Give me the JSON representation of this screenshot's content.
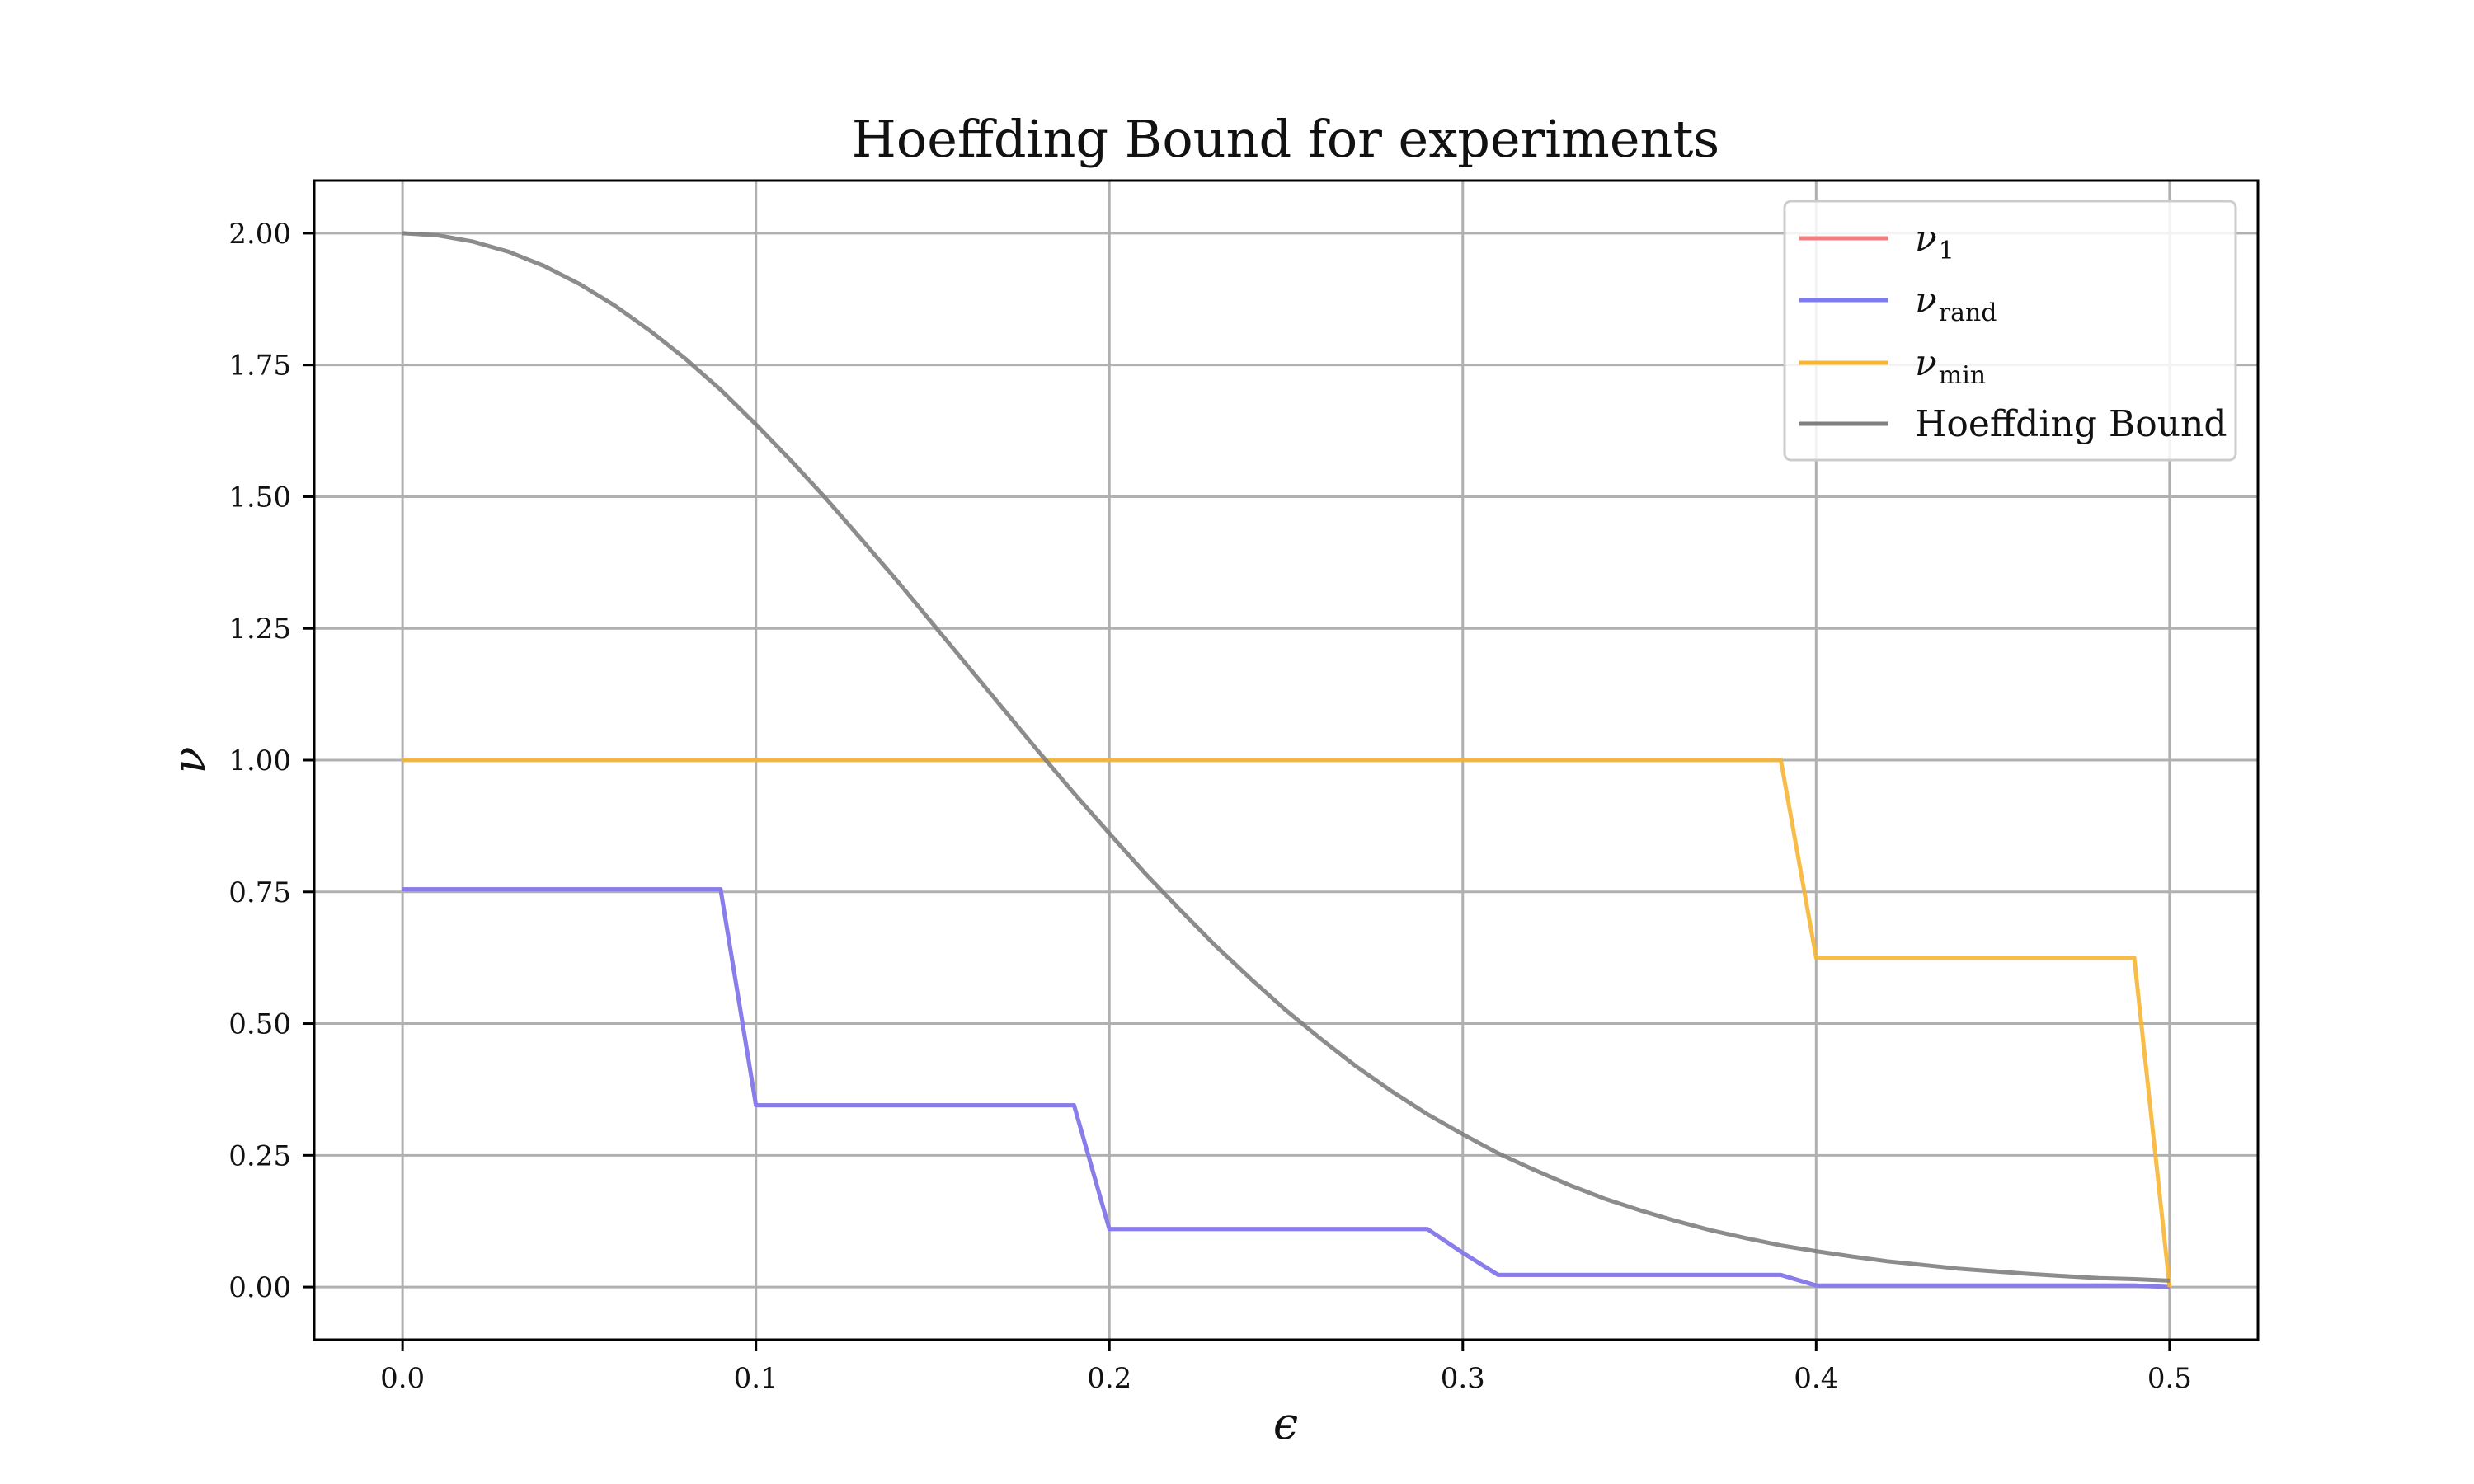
{
  "chart_data": {
    "type": "line",
    "title": "Hoeffding Bound for experiments",
    "xlabel": "ϵ",
    "ylabel": "ν",
    "xlim": [
      -0.025,
      0.525
    ],
    "ylim": [
      -0.1,
      2.1
    ],
    "xticks": [
      0.0,
      0.1,
      0.2,
      0.3,
      0.4,
      0.5
    ],
    "xtick_labels": [
      "0.0",
      "0.1",
      "0.2",
      "0.3",
      "0.4",
      "0.5"
    ],
    "yticks": [
      0.0,
      0.25,
      0.5,
      0.75,
      1.0,
      1.25,
      1.5,
      1.75,
      2.0
    ],
    "ytick_labels": [
      "0.00",
      "0.25",
      "0.50",
      "0.75",
      "1.00",
      "1.25",
      "1.50",
      "1.75",
      "2.00"
    ],
    "grid": true,
    "legend_position": "top-right",
    "x": [
      0.0,
      0.01,
      0.02,
      0.03,
      0.04,
      0.05,
      0.06,
      0.07,
      0.08,
      0.09,
      0.1,
      0.11,
      0.12,
      0.13,
      0.14,
      0.15,
      0.16,
      0.17,
      0.18,
      0.19,
      0.2,
      0.21,
      0.22,
      0.23,
      0.24,
      0.25,
      0.26,
      0.27,
      0.28,
      0.29,
      0.3,
      0.31,
      0.32,
      0.33,
      0.34,
      0.35,
      0.36,
      0.37,
      0.38,
      0.39,
      0.4,
      0.41,
      0.42,
      0.43,
      0.44,
      0.45,
      0.46,
      0.47,
      0.48,
      0.49,
      0.5
    ],
    "series": [
      {
        "name": "ν_1",
        "legend_main": "ν",
        "legend_sub": "1",
        "color": "#f08080",
        "values": [
          0.755,
          0.755,
          0.755,
          0.755,
          0.755,
          0.755,
          0.755,
          0.755,
          0.755,
          0.755,
          0.345,
          0.345,
          0.345,
          0.345,
          0.345,
          0.345,
          0.345,
          0.345,
          0.345,
          0.345,
          0.11,
          0.11,
          0.11,
          0.11,
          0.11,
          0.11,
          0.11,
          0.11,
          0.11,
          0.11,
          0.065,
          0.023,
          0.023,
          0.023,
          0.023,
          0.023,
          0.023,
          0.023,
          0.023,
          0.023,
          0.003,
          0.003,
          0.003,
          0.003,
          0.003,
          0.003,
          0.003,
          0.003,
          0.003,
          0.003,
          0.0
        ]
      },
      {
        "name": "ν_rand",
        "legend_main": "ν",
        "legend_sub": "rand",
        "color": "#7b7bf5",
        "values": [
          0.755,
          0.755,
          0.755,
          0.755,
          0.755,
          0.755,
          0.755,
          0.755,
          0.755,
          0.755,
          0.345,
          0.345,
          0.345,
          0.345,
          0.345,
          0.345,
          0.345,
          0.345,
          0.345,
          0.345,
          0.11,
          0.11,
          0.11,
          0.11,
          0.11,
          0.11,
          0.11,
          0.11,
          0.11,
          0.11,
          0.065,
          0.023,
          0.023,
          0.023,
          0.023,
          0.023,
          0.023,
          0.023,
          0.023,
          0.023,
          0.003,
          0.003,
          0.003,
          0.003,
          0.003,
          0.003,
          0.003,
          0.003,
          0.003,
          0.003,
          0.0
        ]
      },
      {
        "name": "ν_min",
        "legend_main": "ν",
        "legend_sub": "min",
        "color": "#f7b534",
        "values": [
          1.0,
          1.0,
          1.0,
          1.0,
          1.0,
          1.0,
          1.0,
          1.0,
          1.0,
          1.0,
          1.0,
          1.0,
          1.0,
          1.0,
          1.0,
          1.0,
          1.0,
          1.0,
          1.0,
          1.0,
          1.0,
          1.0,
          1.0,
          1.0,
          1.0,
          1.0,
          1.0,
          1.0,
          1.0,
          1.0,
          1.0,
          1.0,
          1.0,
          1.0,
          1.0,
          1.0,
          1.0,
          1.0,
          1.0,
          1.0,
          0.625,
          0.625,
          0.625,
          0.625,
          0.625,
          0.625,
          0.625,
          0.625,
          0.625,
          0.625,
          0.0
        ]
      },
      {
        "name": "Hoeffding Bound",
        "legend_main": "Hoeffding Bound",
        "legend_sub": "",
        "color": "#808080",
        "values": [
          2.0,
          1.996,
          1.984,
          1.965,
          1.938,
          1.904,
          1.863,
          1.815,
          1.762,
          1.703,
          1.637,
          1.568,
          1.495,
          1.418,
          1.34,
          1.259,
          1.178,
          1.097,
          1.016,
          0.937,
          0.861,
          0.786,
          0.716,
          0.648,
          0.585,
          0.525,
          0.47,
          0.418,
          0.371,
          0.328,
          0.29,
          0.254,
          0.223,
          0.194,
          0.168,
          0.146,
          0.126,
          0.108,
          0.093,
          0.079,
          0.068,
          0.058,
          0.049,
          0.042,
          0.035,
          0.03,
          0.025,
          0.021,
          0.017,
          0.015,
          0.012
        ]
      }
    ]
  }
}
